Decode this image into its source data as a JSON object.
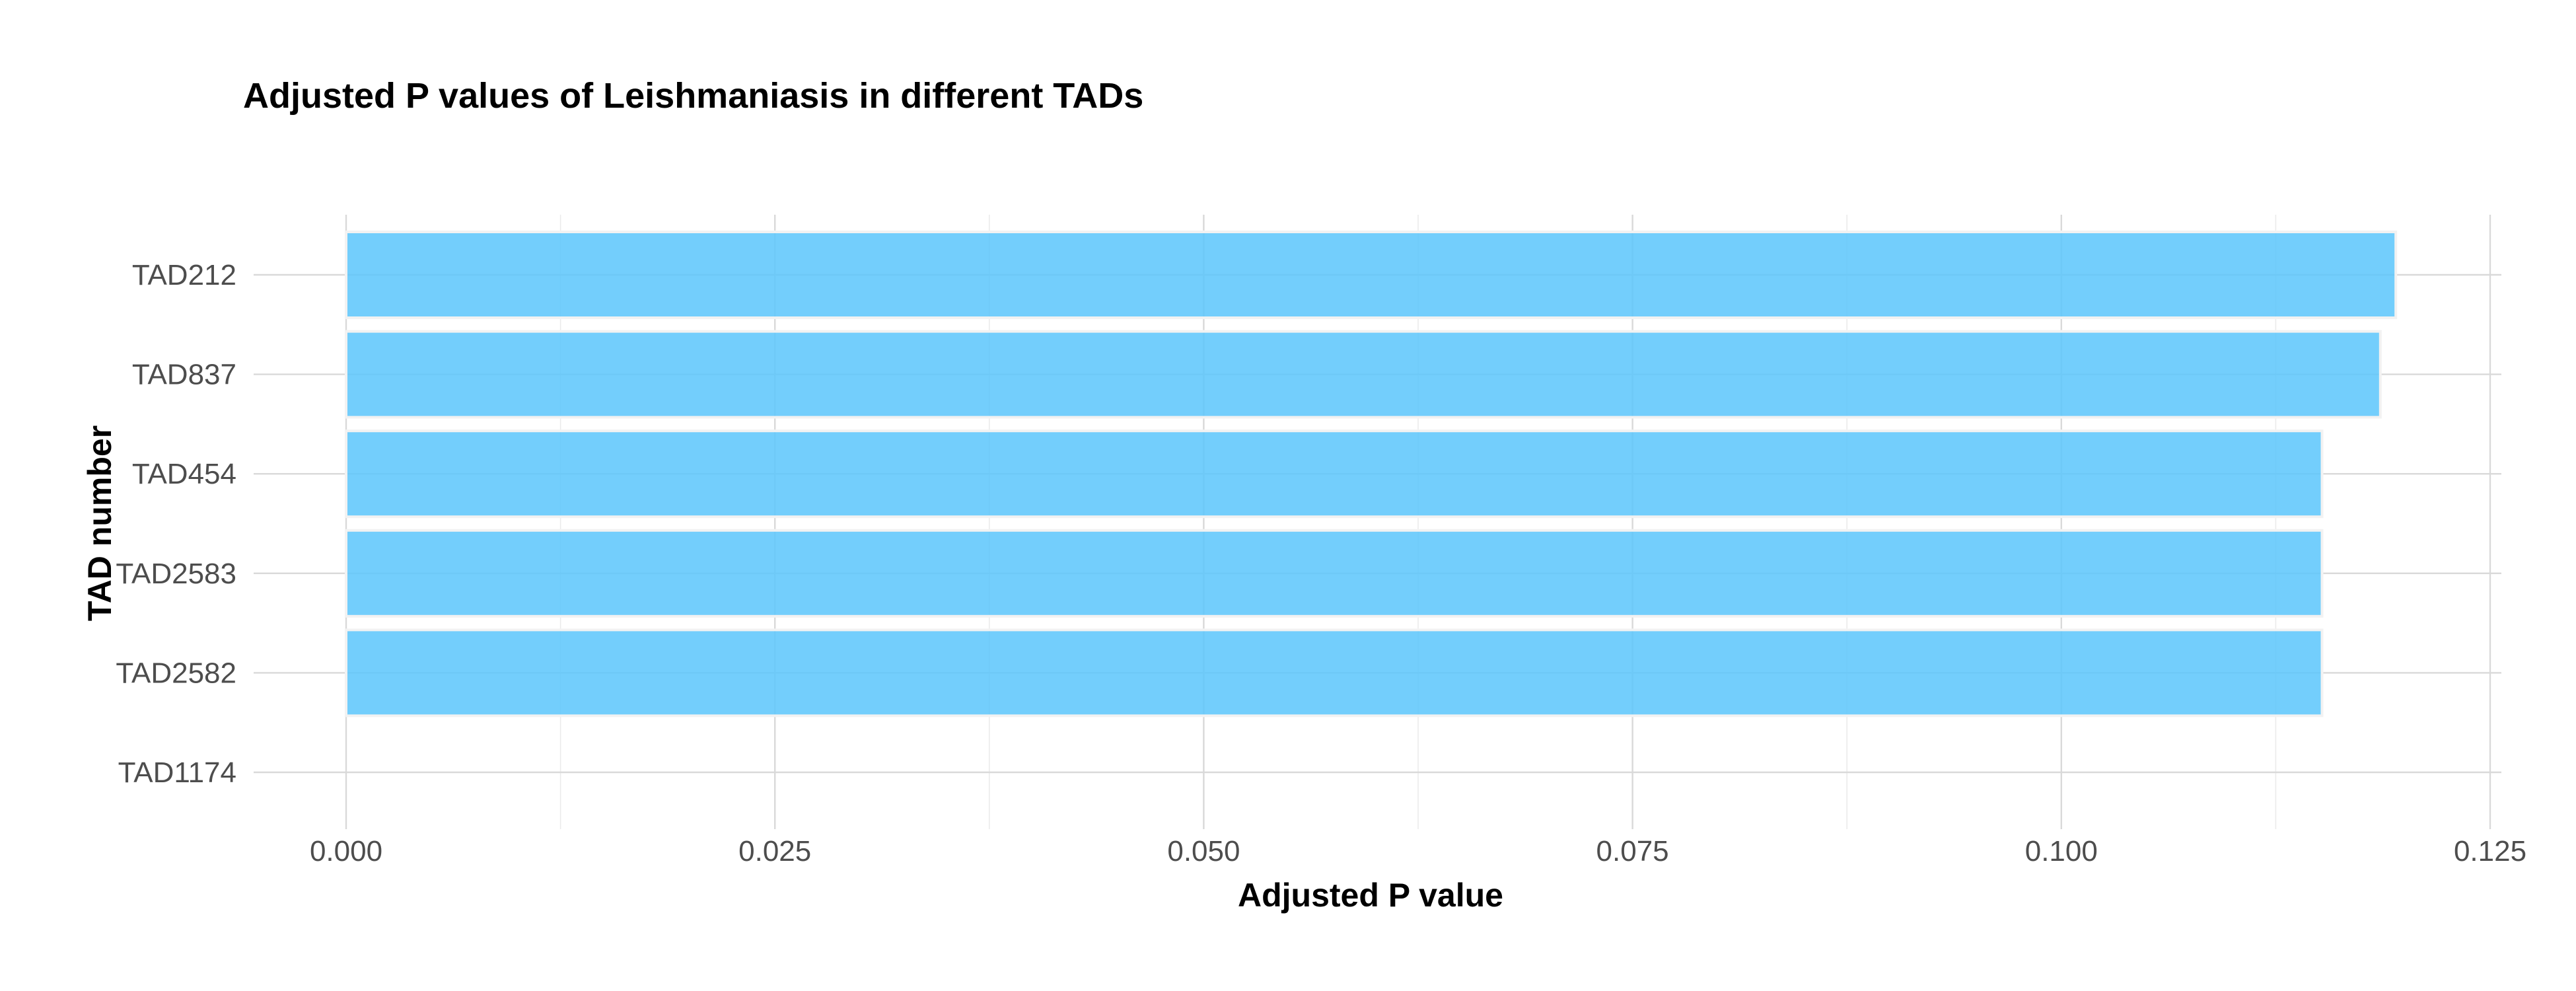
{
  "chart_data": {
    "type": "bar",
    "orientation": "horizontal",
    "title": "Adjusted P values of Leishmaniasis in different TADs",
    "xlabel": "Adjusted P value",
    "ylabel": "TAD number",
    "categories": [
      "TAD212",
      "TAD837",
      "TAD454",
      "TAD2583",
      "TAD2582",
      "TAD1174"
    ],
    "values": [
      0.1195,
      0.1186,
      0.1152,
      0.1152,
      0.1152,
      0
    ],
    "xlim": [
      0,
      0.125
    ],
    "x_ticks": [
      "0.000",
      "0.025",
      "0.050",
      "0.075",
      "0.100",
      "0.125"
    ],
    "x_tick_values": [
      0,
      0.025,
      0.05,
      0.075,
      0.1,
      0.125
    ],
    "grid": true,
    "legend": "none",
    "bar_color": "#5bc5fb",
    "bar_outline_color": "#f2f2f2"
  }
}
